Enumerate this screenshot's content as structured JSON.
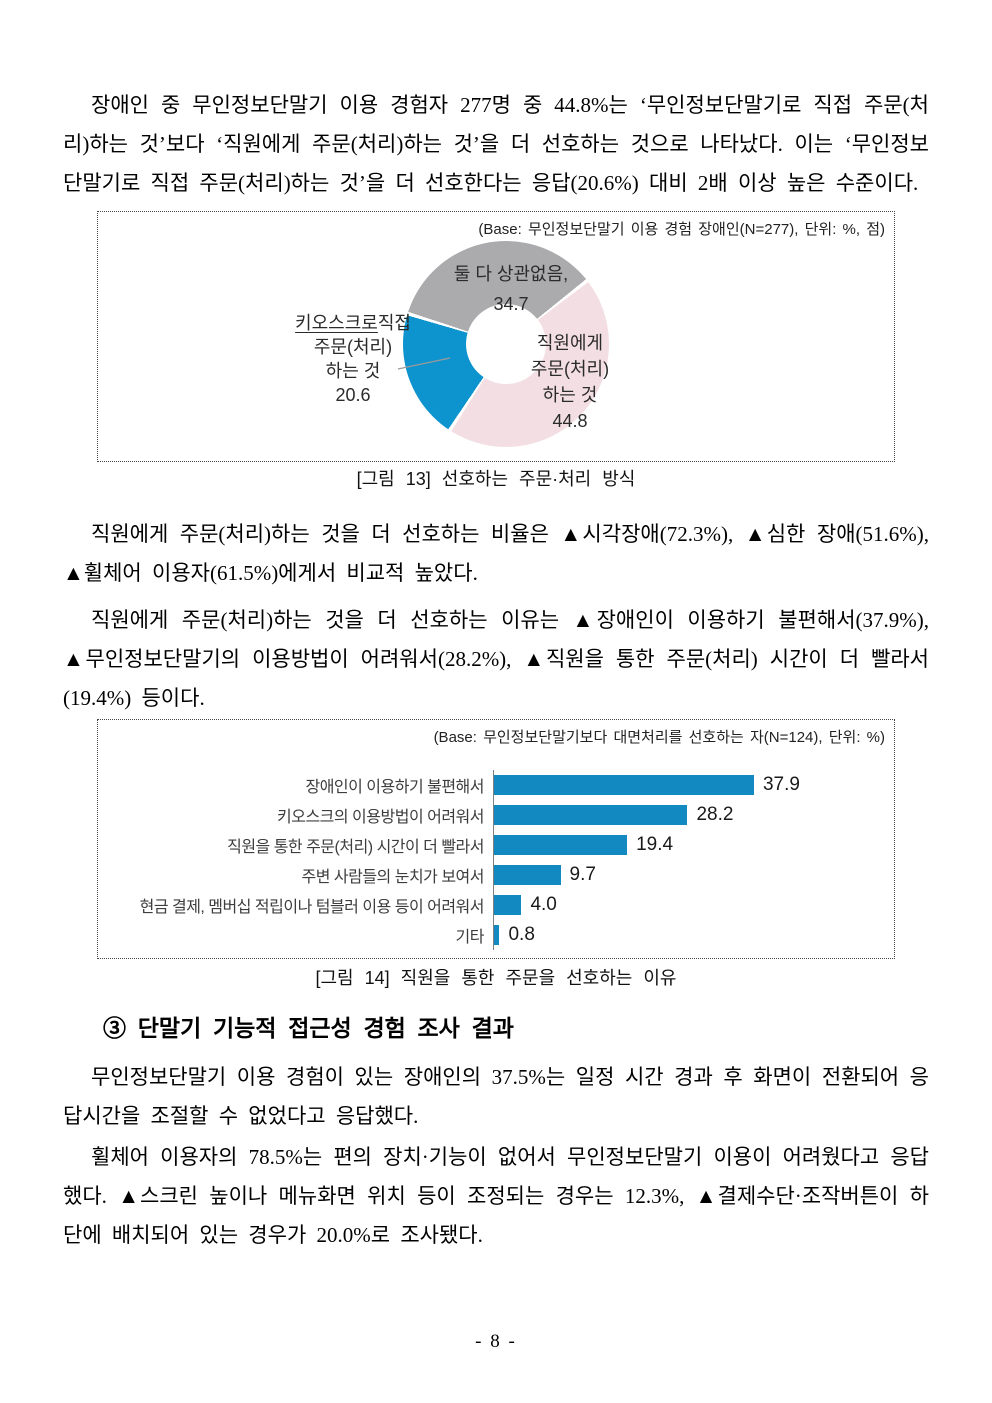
{
  "document": {
    "paragraphs": {
      "p1": "장애인 중 무인정보단말기 이용 경험자 277명 중 44.8%는 ‘무인정보단말기로 직접 주문(처리)하는 것’보다 ‘직원에게 주문(처리)하는 것’을 더 선호하는 것으로 나타났다. 이는 ‘무인정보단말기로 직접 주문(처리)하는 것’을 더 선호한다는 응답(20.6%) 대비 2배 이상 높은 수준이다.",
      "p2": "직원에게 주문(처리)하는 것을 더 선호하는 비율은 ▲시각장애(72.3%), ▲심한 장애(51.6%), ▲휠체어 이용자(61.5%)에게서 비교적 높았다.",
      "p3": "직원에게 주문(처리)하는 것을 더 선호하는 이유는 ▲장애인이 이용하기 불편해서(37.9%), ▲무인정보단말기의 이용방법이 어려워서(28.2%), ▲직원을 통한 주문(처리) 시간이 더 빨라서(19.4%) 등이다.",
      "p4": "무인정보단말기 이용 경험이 있는 장애인의 37.5%는 일정 시간 경과 후 화면이 전환되어 응답시간을 조절할 수 없었다고 응답했다.",
      "p5": "휠체어 이용자의 78.5%는 편의 장치·기능이 없어서 무인정보단말기 이용이 어려웠다고 응답했다. ▲스크린 높이나 메뉴화면 위치 등이 조정되는 경우는 12.3%, ▲결제수단·조작버튼이 하단에 배치되어 있는 경우가 20.0%로 조사됐다."
    },
    "heading": "③ 단말기 기능적 접근성 경험 조사 결과",
    "page_number": "- 8 -"
  },
  "chart_data": [
    {
      "type": "pie",
      "donut": true,
      "caption": "[그림 13] 선호하는 주문·처리 방식",
      "base_note": "(Base: 무인정보단말기 이용 경험 장애인(N=277), 단위: %, 점)",
      "start_angle_deg": 52,
      "slice_gap_deg": 2,
      "slices": [
        {
          "name": "직원에게 주문(처리) 하는 것",
          "value": 44.8,
          "color": "#F3DFE3"
        },
        {
          "name": "키오스크로 직접 주문(처리) 하는 것",
          "value": 20.6,
          "color": "#0D93CE"
        },
        {
          "name": "둘 다 상관없음",
          "value": 34.7,
          "color": "#ABABAD"
        }
      ],
      "labels": {
        "both": "둘 다 상관없음,\n34.7",
        "staff": "직원에게\n주문(처리)\n하는 것\n44.8",
        "kiosk_line1": "키오스크로",
        "kiosk_rest": "직접\n주문(처리)\n하는 것\n20.6"
      }
    },
    {
      "type": "bar",
      "orientation": "horizontal",
      "caption": "[그림 14] 직원을 통한 주문을 선호하는 이유",
      "base_note": "(Base: 무인정보단말기보다 대면처리를 선호하는 자(N=124), 단위: %)",
      "categories": [
        "장애인이 이용하기 불편해서",
        "키오스크의 이용방법이 어려워서",
        "직원을 통한 주문(처리) 시간이 더 빨라서",
        "주변 사람들의 눈치가 보여서",
        "현금 결제, 멤버십 적립이나 텀블러 이용 등이 어려워서",
        "기타"
      ],
      "values": [
        37.9,
        28.2,
        19.4,
        9.7,
        4.0,
        0.8
      ],
      "value_labels": [
        "37.9",
        "28.2",
        "19.4",
        "9.7",
        "4.0",
        "0.8"
      ],
      "bar_color": "#1389C2",
      "xlim": [
        0,
        40
      ],
      "grid": false,
      "legend": "none"
    }
  ]
}
